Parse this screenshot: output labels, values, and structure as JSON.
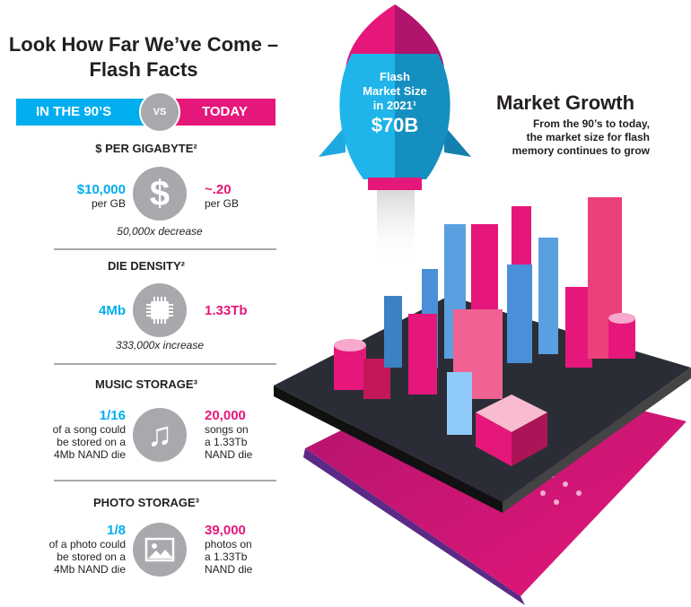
{
  "title": {
    "line1": "Look How Far We’ve Come –",
    "line2": "Flash Facts"
  },
  "compare": {
    "left": "IN THE 90’S",
    "vs": "VS",
    "right": "TODAY"
  },
  "colors": {
    "cyan": "#00aeef",
    "pink": "#e6177a",
    "gray": "#a7a9ac"
  },
  "facts": [
    {
      "heading": "$ PER GIGABYTE²",
      "icon": "dollar-icon",
      "left_value": "$10,000",
      "left_text": [
        "per GB"
      ],
      "right_value": "~.20",
      "right_text": [
        "per GB"
      ],
      "note": "50,000x decrease"
    },
    {
      "heading": "DIE DENSITY²",
      "icon": "chip-icon",
      "left_value": "4Mb",
      "left_text": [],
      "right_value": "1.33Tb",
      "right_text": [],
      "note": "333,000x increase"
    },
    {
      "heading": "MUSIC STORAGE³",
      "icon": "music-note-icon",
      "left_value": "1/16",
      "left_text": [
        "of a song could",
        "be stored on a",
        "4Mb NAND die"
      ],
      "right_value": "20,000",
      "right_text": [
        "songs on",
        "a 1.33Tb",
        "NAND die"
      ]
    },
    {
      "heading": "PHOTO STORAGE³",
      "icon": "image-icon",
      "left_value": "1/8",
      "left_text": [
        "of a photo could",
        "be stored on a",
        "4Mb NAND die"
      ],
      "right_value": "39,000",
      "right_text": [
        "photos on",
        "a 1.33Tb",
        "NAND die"
      ]
    }
  ],
  "rocket": {
    "line1": "Flash",
    "line2": "Market Size",
    "line3": "in 2021¹",
    "value": "$70B"
  },
  "market": {
    "title": "Market Growth",
    "sub1": "From the 90’s to today,",
    "sub2": "the market size for flash",
    "sub3": "memory continues to grow"
  }
}
